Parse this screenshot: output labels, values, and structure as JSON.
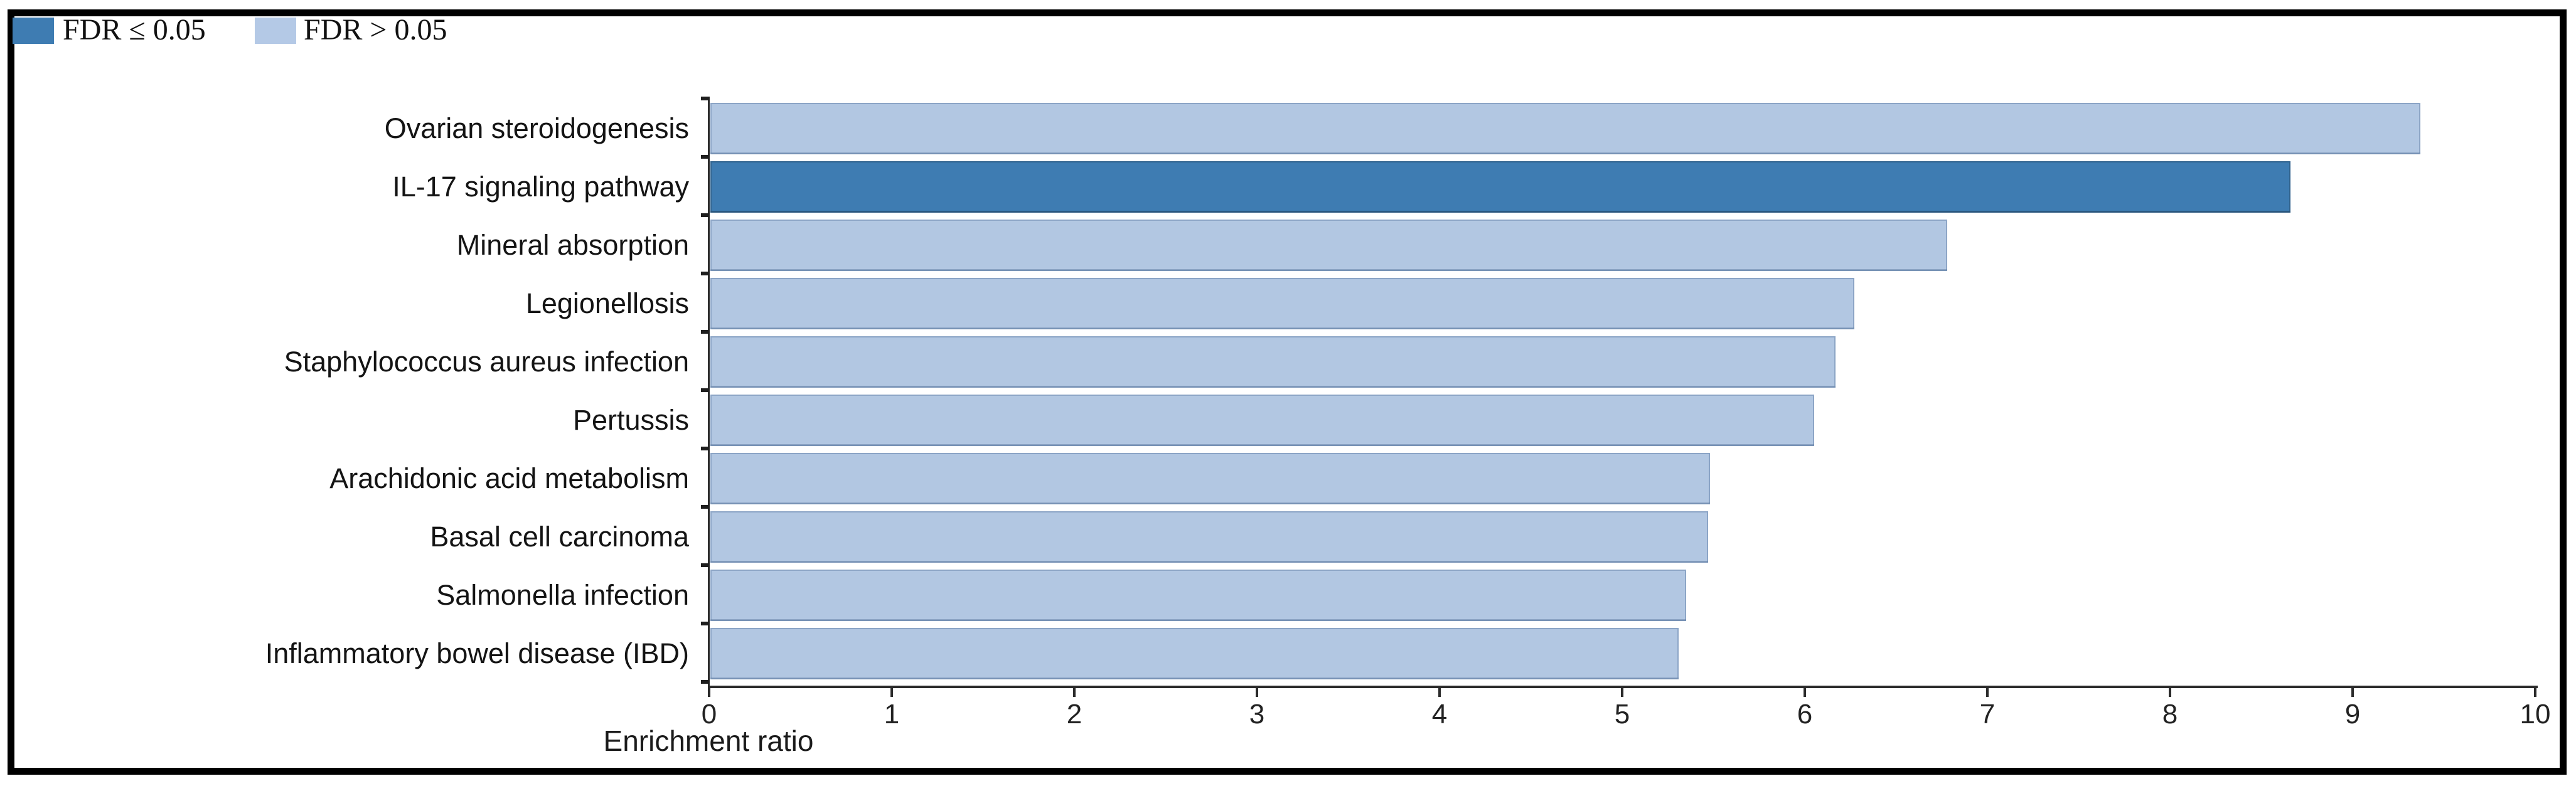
{
  "page": {
    "background": "#ffffff",
    "frame_border_color": "#000000"
  },
  "legend": {
    "position": "top-left",
    "items": [
      {
        "label": "FDR ≤ 0.05",
        "color": "#3e7cb2",
        "meaning": "significant"
      },
      {
        "label": "FDR > 0.05",
        "color": "#b4c9e6",
        "meaning": "not-significant"
      }
    ]
  },
  "chart_data": {
    "type": "bar",
    "orientation": "horizontal",
    "title": "",
    "xlabel": "Enrichment ratio",
    "ylabel": "",
    "xlim": [
      0,
      10
    ],
    "xticks": [
      "0",
      "1",
      "2",
      "3",
      "4",
      "5",
      "6",
      "7",
      "8",
      "9",
      "10"
    ],
    "grid": false,
    "legend_position": "top-left",
    "categories": [
      "Ovarian steroidogenesis",
      "IL-17 signaling pathway",
      "Mineral absorption",
      "Legionellosis",
      "Staphylococcus aureus infection",
      "Pertussis",
      "Arachidonic acid metabolism",
      "Basal cell carcinoma",
      "Salmonella infection",
      "Inflammatory bowel disease (IBD)"
    ],
    "values": [
      9.37,
      8.66,
      6.78,
      6.27,
      6.17,
      6.05,
      5.48,
      5.47,
      5.35,
      5.31
    ],
    "fdr_significant": [
      false,
      true,
      false,
      false,
      false,
      false,
      false,
      false,
      false,
      false
    ],
    "bar_colors": {
      "fdr_le_0_05": "#3e7cb2",
      "fdr_gt_0_05": "#b2c7e2"
    },
    "axis_color": "#2b2b2b"
  }
}
